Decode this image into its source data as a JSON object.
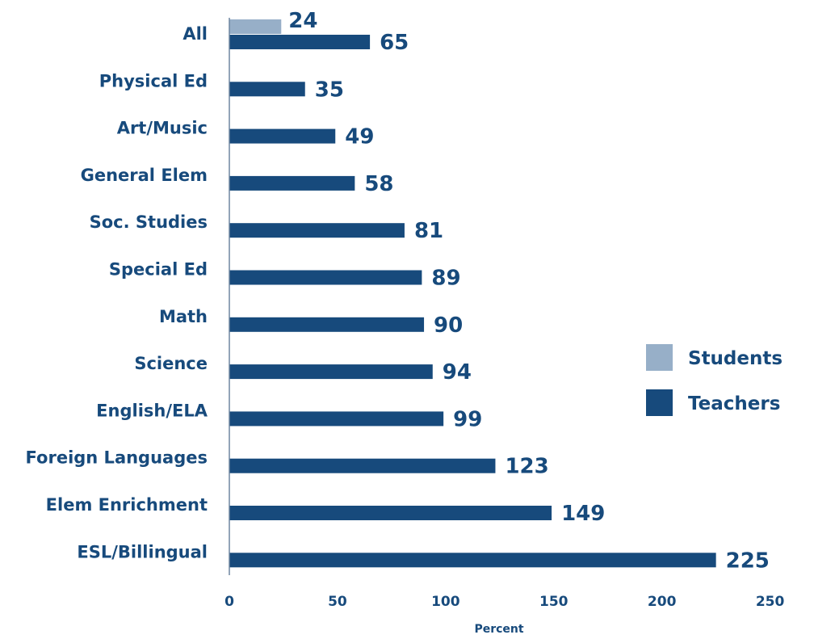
{
  "chart_data": {
    "type": "bar",
    "orientation": "horizontal",
    "categories": [
      "All",
      "Physical Ed",
      "Art/Music",
      "General Elem",
      "Soc. Studies",
      "Special Ed",
      "Math",
      "Science",
      "English/ELA",
      "Foreign Languages",
      "Elem Enrichment",
      "ESL/Billingual"
    ],
    "series": [
      {
        "name": "Students",
        "color": "#97afc8",
        "values": [
          24,
          null,
          null,
          null,
          null,
          null,
          null,
          null,
          null,
          null,
          null,
          null
        ]
      },
      {
        "name": "Teachers",
        "color": "#174a7c",
        "values": [
          65,
          35,
          49,
          58,
          81,
          89,
          90,
          94,
          99,
          123,
          149,
          225
        ]
      }
    ],
    "xlabel": "Percent",
    "xlim": [
      0,
      250
    ],
    "xticks": [
      0,
      50,
      100,
      150,
      200,
      250
    ],
    "grid": false,
    "legend_position": "right"
  }
}
